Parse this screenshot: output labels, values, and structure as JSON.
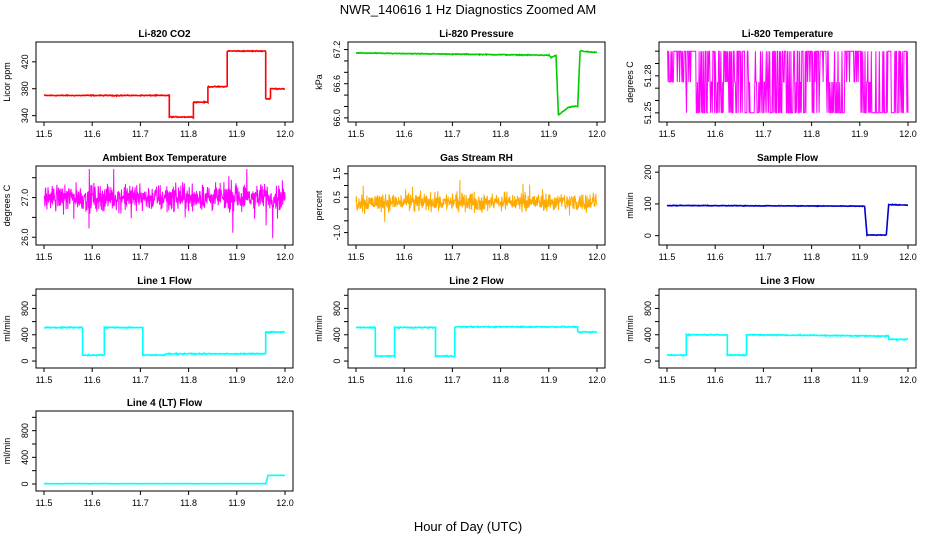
{
  "figure": {
    "title": "NWR_140616  1 Hz Diagnostics Zoomed AM",
    "xlabel": "Hour of Day (UTC)"
  },
  "chart_data": [
    {
      "type": "line",
      "title": "Li-820 CO2",
      "ylabel": "Licor ppm",
      "color": "#ff0000",
      "xlim": [
        11.5,
        12.0
      ],
      "ylim": [
        335,
        445
      ],
      "xticks": [
        "11.5",
        "11.6",
        "11.7",
        "11.8",
        "11.9",
        "12.0"
      ],
      "yticks": [
        340,
        380,
        420
      ],
      "ytick_labels": [
        "340",
        "380",
        "420"
      ],
      "x": [
        11.5,
        11.76,
        11.76,
        11.81,
        11.81,
        11.84,
        11.84,
        11.88,
        11.88,
        11.96,
        11.96,
        11.97,
        11.97,
        12.0
      ],
      "y": [
        370,
        370,
        338,
        338,
        360,
        360,
        383,
        383,
        436,
        436,
        365,
        365,
        380,
        380
      ],
      "noise": 1
    },
    {
      "type": "line",
      "title": "Li-820 Pressure",
      "ylabel": "kPa",
      "color": "#00cc00",
      "xlim": [
        11.5,
        12.0
      ],
      "ylim": [
        65.98,
        67.28
      ],
      "xticks": [
        "11.5",
        "11.6",
        "11.7",
        "11.8",
        "11.9",
        "12.0"
      ],
      "yticks": [
        66.0,
        66.6,
        67.2
      ],
      "ytick_labels": [
        "66.0",
        "66.6",
        "67.2"
      ],
      "minor_yticks": [
        66.2,
        66.4,
        66.8,
        67.0
      ],
      "x": [
        11.5,
        11.7,
        11.9,
        11.905,
        11.915,
        11.92,
        11.94,
        11.95,
        11.96,
        11.965,
        11.98,
        12.0
      ],
      "y": [
        67.14,
        67.12,
        67.1,
        67.06,
        67.1,
        66.05,
        66.18,
        66.2,
        66.2,
        67.18,
        67.16,
        67.15
      ],
      "noise": 0.01
    },
    {
      "type": "switching",
      "title": "Li-820 Temperature",
      "ylabel": "degrees C",
      "color": "#ff00ff",
      "xlim": [
        11.5,
        12.0
      ],
      "ylim": [
        51.245,
        51.305
      ],
      "xticks": [
        "11.5",
        "11.6",
        "11.7",
        "11.8",
        "11.9",
        "12.0"
      ],
      "yticks": [
        51.25,
        51.28
      ],
      "ytick_labels": [
        "51.25",
        "51.28"
      ],
      "minor_yticks": [
        51.26,
        51.27,
        51.29,
        51.3
      ],
      "levels": [
        51.25,
        51.275,
        51.3
      ],
      "noise": 0
    },
    {
      "type": "noise",
      "title": "Ambient Box Temperature",
      "ylabel": "degrees C",
      "color": "#ff00ff",
      "xlim": [
        11.5,
        12.0
      ],
      "ylim": [
        25.88,
        27.72
      ],
      "xticks": [
        "11.5",
        "11.6",
        "11.7",
        "11.8",
        "11.9",
        "12.0"
      ],
      "yticks": [
        26.0,
        27.0
      ],
      "ytick_labels": [
        "26.0",
        "27.0"
      ],
      "minor_yticks": [
        26.5,
        27.5
      ],
      "mean": 27.0,
      "noise": 0.3
    },
    {
      "type": "noise",
      "title": "Gas Stream RH",
      "ylabel": "percent",
      "color": "#ffaa00",
      "xlim": [
        11.5,
        12.0
      ],
      "ylim": [
        -1.4,
        1.7
      ],
      "xticks": [
        "11.5",
        "11.6",
        "11.7",
        "11.8",
        "11.9",
        "12.0"
      ],
      "yticks": [
        -1.0,
        0.5,
        1.5
      ],
      "ytick_labels": [
        "-1.0",
        "0.5",
        "1.5"
      ],
      "minor_yticks": [
        -0.5,
        0.0,
        1.0
      ],
      "mean": 0.3,
      "noise": 0.35
    },
    {
      "type": "line",
      "title": "Sample Flow",
      "ylabel": "ml/min",
      "color": "#0000cc",
      "xlim": [
        11.5,
        12.0
      ],
      "ylim": [
        -20,
        210
      ],
      "xticks": [
        "11.5",
        "11.6",
        "11.7",
        "11.8",
        "11.9",
        "12.0"
      ],
      "yticks": [
        0,
        100,
        200
      ],
      "ytick_labels": [
        "0",
        "100",
        "200"
      ],
      "x": [
        11.5,
        11.91,
        11.915,
        11.955,
        11.96,
        12.0
      ],
      "y": [
        95,
        93,
        2,
        2,
        98,
        96
      ],
      "noise": 1.5
    },
    {
      "type": "line",
      "title": "Line 1 Flow",
      "ylabel": "ml/min",
      "color": "#00ffff",
      "xlim": [
        11.5,
        12.0
      ],
      "ylim": [
        -60,
        1050
      ],
      "xticks": [
        "11.5",
        "11.6",
        "11.7",
        "11.8",
        "11.9",
        "12.0"
      ],
      "yticks": [
        0,
        400,
        800
      ],
      "ytick_labels": [
        "0",
        "400",
        "800"
      ],
      "minor_yticks": [
        200,
        600,
        1000
      ],
      "x": [
        11.5,
        11.58,
        11.58,
        11.625,
        11.625,
        11.705,
        11.705,
        11.75,
        11.75,
        11.96,
        11.96,
        12.0
      ],
      "y": [
        510,
        510,
        90,
        90,
        510,
        510,
        90,
        90,
        110,
        110,
        440,
        440
      ],
      "noise": 12
    },
    {
      "type": "line",
      "title": "Line 2 Flow",
      "ylabel": "ml/min",
      "color": "#00ffff",
      "xlim": [
        11.5,
        12.0
      ],
      "ylim": [
        -60,
        1050
      ],
      "xticks": [
        "11.5",
        "11.6",
        "11.7",
        "11.8",
        "11.9",
        "12.0"
      ],
      "yticks": [
        0,
        400,
        800
      ],
      "ytick_labels": [
        "0",
        "400",
        "800"
      ],
      "minor_yticks": [
        200,
        600,
        1000
      ],
      "x": [
        11.5,
        11.54,
        11.54,
        11.58,
        11.58,
        11.665,
        11.665,
        11.705,
        11.705,
        11.96,
        11.96,
        12.0
      ],
      "y": [
        510,
        510,
        75,
        75,
        510,
        510,
        75,
        75,
        520,
        520,
        440,
        440
      ],
      "noise": 12
    },
    {
      "type": "line",
      "title": "Line 3 Flow",
      "ylabel": "ml/min",
      "color": "#00ffff",
      "xlim": [
        11.5,
        12.0
      ],
      "ylim": [
        -60,
        1050
      ],
      "xticks": [
        "11.5",
        "11.6",
        "11.7",
        "11.8",
        "11.9",
        "12.0"
      ],
      "yticks": [
        0,
        400,
        800
      ],
      "ytick_labels": [
        "0",
        "400",
        "800"
      ],
      "minor_yticks": [
        200,
        600,
        1000
      ],
      "x": [
        11.5,
        11.54,
        11.54,
        11.625,
        11.625,
        11.665,
        11.665,
        11.96,
        11.96,
        12.0
      ],
      "y": [
        90,
        90,
        400,
        400,
        90,
        90,
        400,
        380,
        330,
        330
      ],
      "noise": 12
    },
    {
      "type": "line",
      "title": "Line 4 (LT) Flow",
      "ylabel": "ml/min",
      "color": "#00ffff",
      "xlim": [
        11.5,
        12.0
      ],
      "ylim": [
        -60,
        1050
      ],
      "xticks": [
        "11.5",
        "11.6",
        "11.7",
        "11.8",
        "11.9",
        "12.0"
      ],
      "yticks": [
        0,
        400,
        800
      ],
      "ytick_labels": [
        "0",
        "400",
        "800"
      ],
      "minor_yticks": [
        200,
        600,
        1000
      ],
      "x": [
        11.5,
        11.96,
        11.965,
        12.0
      ],
      "y": [
        5,
        5,
        130,
        130
      ],
      "noise": 3
    }
  ]
}
